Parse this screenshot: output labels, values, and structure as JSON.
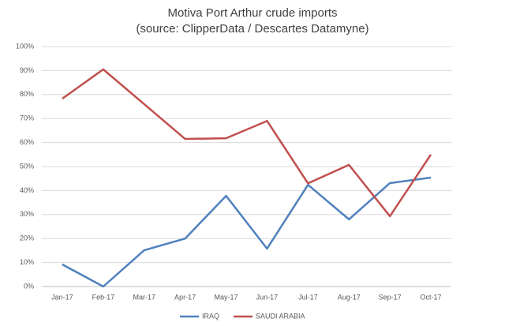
{
  "chart_data": {
    "type": "line",
    "title": "Motiva Port Arthur crude imports",
    "subtitle": "(source: ClipperData / Descartes Datamyne)",
    "categories": [
      "Jan-17",
      "Feb-17",
      "Mar-17",
      "Apr-17",
      "May-17",
      "Jun-17",
      "Jul-17",
      "Aug-17",
      "Sep-17",
      "Oct-17"
    ],
    "series": [
      {
        "name": "IRAQ",
        "color": "#4f81bd",
        "values": [
          9.2,
          0,
          15.1,
          20,
          37.8,
          15.8,
          42.4,
          28,
          43.1,
          45.4
        ]
      },
      {
        "name": "SAUDI ARABIA",
        "color": "#c0504d",
        "values": [
          78.3,
          90.5,
          76,
          61.5,
          61.8,
          69,
          43,
          50.7,
          29.3,
          55
        ]
      }
    ],
    "ylim": [
      0,
      100
    ],
    "yticks": [
      {
        "value": 0,
        "label": "0%"
      },
      {
        "value": 10,
        "label": "10%"
      },
      {
        "value": 20,
        "label": "20%"
      },
      {
        "value": 30,
        "label": "30%"
      },
      {
        "value": 40,
        "label": "40%"
      },
      {
        "value": 50,
        "label": "50%"
      },
      {
        "value": 60,
        "label": "60%"
      },
      {
        "value": 70,
        "label": "70%"
      },
      {
        "value": 80,
        "label": "80%"
      },
      {
        "value": 90,
        "label": "90%"
      },
      {
        "value": 100,
        "label": "100%"
      }
    ],
    "grid": true,
    "legend": "bottom"
  }
}
